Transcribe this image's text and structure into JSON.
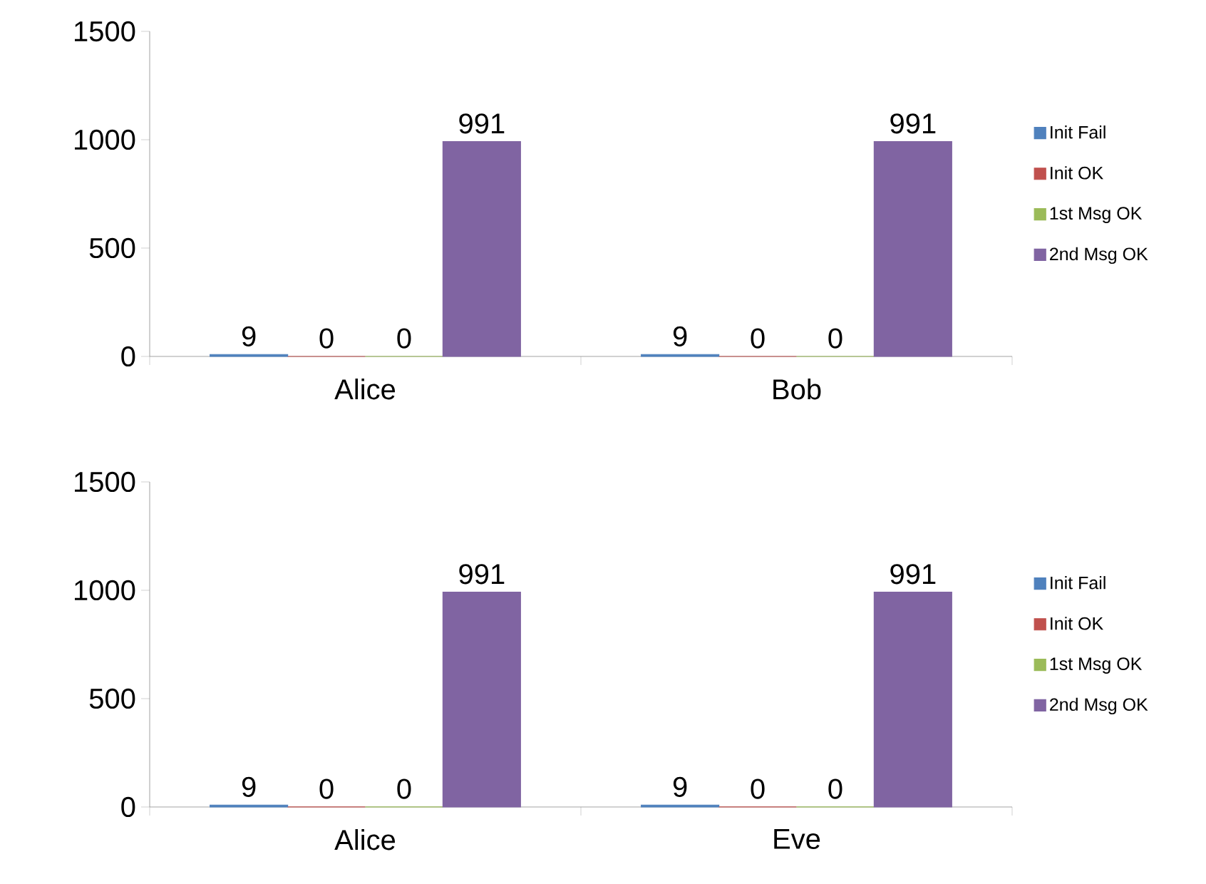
{
  "chart_data": [
    {
      "type": "bar",
      "categories": [
        "Alice",
        "Bob"
      ],
      "ylim": [
        0,
        1500
      ],
      "yticks": [
        0,
        500,
        1000,
        1500
      ],
      "legend": "right",
      "data_labels": true,
      "series": [
        {
          "name": "Init Fail",
          "color": "#4f81bd",
          "values": [
            9,
            9
          ]
        },
        {
          "name": "Init OK",
          "color": "#c0504d",
          "values": [
            0,
            0
          ]
        },
        {
          "name": "1st Msg OK",
          "color": "#9bbb59",
          "values": [
            0,
            0
          ]
        },
        {
          "name": "2nd Msg OK",
          "color": "#8064a2",
          "values": [
            991,
            991
          ]
        }
      ]
    },
    {
      "type": "bar",
      "categories": [
        "Alice",
        "Eve"
      ],
      "ylim": [
        0,
        1500
      ],
      "yticks": [
        0,
        500,
        1000,
        1500
      ],
      "legend": "right",
      "data_labels": true,
      "series": [
        {
          "name": "Init Fail",
          "color": "#4f81bd",
          "values": [
            9,
            9
          ]
        },
        {
          "name": "Init OK",
          "color": "#c0504d",
          "values": [
            0,
            0
          ]
        },
        {
          "name": "1st Msg OK",
          "color": "#9bbb59",
          "values": [
            0,
            0
          ]
        },
        {
          "name": "2nd Msg OK",
          "color": "#8064a2",
          "values": [
            991,
            991
          ]
        }
      ]
    }
  ]
}
